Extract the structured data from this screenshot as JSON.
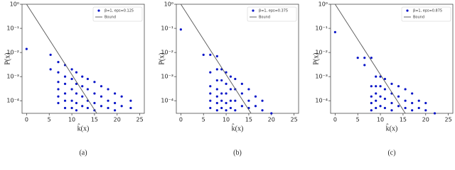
{
  "chart_data": [
    {
      "type": "scatter",
      "caption": "(a)",
      "xlabel": "k̂(x)",
      "ylabel": "P(x)",
      "ylog": true,
      "legend": "upper right",
      "xlim": [
        -1,
        26
      ],
      "xticks": [
        0,
        5,
        10,
        15,
        20,
        25
      ],
      "ylim": [
        3e-05,
        1
      ],
      "yticks": [
        {
          "value": 1,
          "label": "10⁰"
        },
        {
          "value": 0.1,
          "label": "10⁻¹"
        },
        {
          "value": 0.01,
          "label": "10⁻²"
        },
        {
          "value": 0.001,
          "label": "10⁻³"
        },
        {
          "value": 0.0001,
          "label": "10⁻⁴"
        }
      ],
      "series": [
        {
          "name": "β=1, eps=0.125",
          "color": "#0a16c8",
          "style": "points",
          "x": [
            0,
            5.3,
            5.3,
            7,
            7,
            7,
            7,
            7,
            7,
            8.5,
            8.5,
            8.5,
            8.5,
            8.5,
            8.5,
            10,
            10,
            10,
            10,
            10,
            11,
            11,
            11,
            11,
            11,
            12.3,
            12.3,
            12.3,
            12.3,
            13.5,
            13.5,
            13.5,
            13.5,
            15,
            15,
            15,
            15,
            16.5,
            16.5,
            16.5,
            18,
            18,
            18,
            19.5,
            19.5,
            19.5,
            21,
            21,
            23,
            23
          ],
          "values": [
            0.014,
            0.008,
            0.002,
            0.004,
            0.0015,
            0.0006,
            0.0003,
            0.00015,
            8e-05,
            0.003,
            0.001,
            0.0005,
            0.0002,
            0.0001,
            5e-05,
            0.002,
            0.0008,
            0.0003,
            0.0001,
            5e-05,
            0.0015,
            0.0005,
            0.0002,
            8e-05,
            4e-05,
            0.001,
            0.0004,
            0.00015,
            6e-05,
            0.0008,
            0.0003,
            0.0001,
            5e-05,
            0.0006,
            0.0002,
            8e-05,
            4e-05,
            0.0004,
            0.00015,
            6e-05,
            0.0003,
            0.0001,
            5e-05,
            0.0002,
            8e-05,
            4e-05,
            0.00015,
            6e-05,
            0.0001,
            5e-05
          ]
        },
        {
          "name": "Bound",
          "color": "#555555",
          "style": "line",
          "x": [
            0,
            15.5
          ],
          "values": [
            1,
            3e-05
          ]
        }
      ]
    },
    {
      "type": "scatter",
      "caption": "(b)",
      "xlabel": "k̂(x)",
      "ylabel": "P(x)",
      "ylog": true,
      "legend": "upper right",
      "xlim": [
        -1,
        26
      ],
      "xticks": [
        0,
        5,
        10,
        15,
        20,
        25
      ],
      "ylim": [
        3e-05,
        1
      ],
      "yticks": [
        {
          "value": 1,
          "label": "10⁰"
        },
        {
          "value": 0.1,
          "label": "10⁻¹"
        },
        {
          "value": 0.01,
          "label": "10⁻²"
        },
        {
          "value": 0.001,
          "label": "10⁻³"
        },
        {
          "value": 0.0001,
          "label": "10⁻⁴"
        }
      ],
      "series": [
        {
          "name": "β=1, eps=0.375",
          "color": "#0a16c8",
          "style": "points",
          "x": [
            0,
            5,
            6.5,
            6.5,
            6.5,
            6.5,
            6.5,
            6.5,
            8,
            8,
            8,
            8,
            8,
            8,
            8,
            9,
            9,
            9,
            9,
            9,
            10,
            10,
            10,
            10,
            10,
            11,
            11,
            11,
            11,
            12,
            12,
            12,
            12,
            13.5,
            13.5,
            13.5,
            15,
            15,
            15,
            16.5,
            16.5,
            18,
            18,
            20
          ],
          "values": [
            0.09,
            0.008,
            0.008,
            0.0015,
            0.0004,
            0.0002,
            0.0001,
            5e-05,
            0.007,
            0.002,
            0.0007,
            0.0003,
            0.00015,
            8e-05,
            4e-05,
            0.002,
            0.0007,
            0.0002,
            0.0001,
            5e-05,
            0.0015,
            0.0005,
            0.0002,
            8e-05,
            4e-05,
            0.001,
            0.0003,
            0.0001,
            5e-05,
            0.0008,
            0.0003,
            0.0001,
            4e-05,
            0.0005,
            0.0002,
            6e-05,
            0.0003,
            0.0001,
            5e-05,
            0.00015,
            6e-05,
            0.0001,
            4e-05,
            3e-05
          ]
        },
        {
          "name": "Bound",
          "color": "#555555",
          "style": "line",
          "x": [
            0,
            15.5
          ],
          "values": [
            1,
            3e-05
          ]
        }
      ]
    },
    {
      "type": "scatter",
      "caption": "(c)",
      "xlabel": "k̂(x)",
      "ylabel": "P(x)",
      "ylog": true,
      "legend": "upper right",
      "xlim": [
        -1,
        26
      ],
      "xticks": [
        0,
        5,
        10,
        15,
        20,
        25
      ],
      "ylim": [
        3e-05,
        1
      ],
      "yticks": [
        {
          "value": 1,
          "label": "10⁰"
        },
        {
          "value": 0.1,
          "label": "10⁻¹"
        },
        {
          "value": 0.01,
          "label": "10⁻²"
        },
        {
          "value": 0.001,
          "label": "10⁻³"
        },
        {
          "value": 0.0001,
          "label": "10⁻⁴"
        }
      ],
      "series": [
        {
          "name": "β=1, eps=0.875",
          "color": "#0a16c8",
          "style": "points",
          "x": [
            0,
            5,
            6.5,
            6.5,
            8,
            8,
            8,
            8,
            8,
            9,
            9,
            9,
            9,
            9,
            10,
            10,
            10,
            10,
            11,
            11,
            11,
            11,
            12.5,
            12.5,
            12.5,
            12.5,
            14,
            14,
            14,
            15.5,
            15.5,
            15.5,
            17,
            17,
            17,
            18.5,
            18.5,
            20,
            20,
            22
          ],
          "values": [
            0.07,
            0.006,
            0.006,
            0.003,
            0.006,
            0.0004,
            0.00015,
            8e-05,
            4e-05,
            0.001,
            0.0004,
            0.0002,
            0.0001,
            5e-05,
            0.001,
            0.0004,
            0.00015,
            6e-05,
            0.0008,
            0.0003,
            0.00012,
            5e-05,
            0.0005,
            0.0002,
            8e-05,
            4e-05,
            0.0004,
            0.00015,
            6e-05,
            0.0003,
            0.0001,
            5e-05,
            0.0002,
            8e-05,
            4e-05,
            0.0001,
            5e-05,
            8e-05,
            4e-05,
            3e-05
          ]
        },
        {
          "name": "Bound",
          "color": "#555555",
          "style": "line",
          "x": [
            0,
            15.5
          ],
          "values": [
            1,
            3e-05
          ]
        }
      ]
    }
  ]
}
